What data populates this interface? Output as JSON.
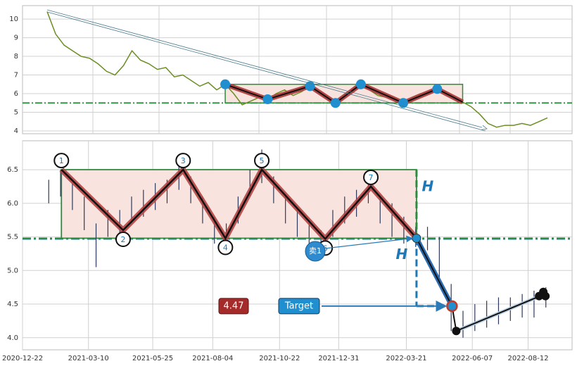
{
  "chart_data": [
    {
      "type": "line",
      "values": [
        10.4,
        9.2,
        8.6,
        8.3,
        8.0,
        7.9,
        7.6,
        7.2,
        7.0,
        7.5,
        8.3,
        7.8,
        7.6,
        7.3,
        7.4,
        6.9,
        7.0,
        6.7,
        6.4,
        6.6,
        6.2,
        6.5,
        6.0,
        5.4,
        5.6,
        5.8,
        5.7,
        6.0,
        6.2,
        5.9,
        6.1,
        6.4,
        6.0,
        5.7,
        5.5,
        5.9,
        6.2,
        6.5,
        6.2,
        5.9,
        5.8,
        5.6,
        5.5,
        5.8,
        6.0,
        6.1,
        6.25,
        5.9,
        5.7,
        5.55,
        5.3,
        4.9,
        4.4,
        4.2,
        4.3,
        4.3,
        4.4,
        4.3,
        4.5,
        4.7
      ],
      "color": "#6b8e23",
      "pattern": [
        null,
        null,
        null,
        null,
        null,
        null,
        null,
        null,
        null,
        null,
        null,
        null,
        null,
        null,
        null,
        null,
        null,
        null,
        null,
        null,
        null,
        6.5,
        null,
        null,
        null,
        null,
        5.7,
        null,
        null,
        null,
        null,
        6.4,
        null,
        null,
        5.5,
        null,
        null,
        6.5,
        null,
        null,
        null,
        null,
        5.5,
        null,
        null,
        null,
        6.25,
        null,
        null,
        5.55,
        null,
        null,
        null,
        null,
        null,
        null,
        null,
        null,
        null,
        null
      ],
      "neckline": 5.5,
      "top": 6.5,
      "ylim": [
        3.85,
        10.72
      ],
      "yticks": [
        4,
        5,
        6,
        7,
        8,
        9,
        10
      ],
      "grid": true
    },
    {
      "type": "ohlc",
      "x": [
        "2021-01-22",
        "2021-02-05",
        "2021-02-19",
        "2021-03-05",
        "2021-03-19",
        "2021-04-02",
        "2021-04-16",
        "2021-04-30",
        "2021-05-14",
        "2021-05-28",
        "2021-06-11",
        "2021-06-25",
        "2021-07-09",
        "2021-07-23",
        "2021-08-06",
        "2021-08-20",
        "2021-09-03",
        "2021-09-17",
        "2021-10-01",
        "2021-10-15",
        "2021-10-29",
        "2021-11-12",
        "2021-11-26",
        "2021-12-10",
        "2021-12-24",
        "2022-01-07",
        "2022-01-21",
        "2022-02-04",
        "2022-02-18",
        "2022-03-04",
        "2022-03-18",
        "2022-04-01",
        "2022-04-15",
        "2022-04-29",
        "2022-05-13",
        "2022-05-27",
        "2022-06-10",
        "2022-06-24",
        "2022-07-08",
        "2022-07-22",
        "2022-08-05",
        "2022-08-19",
        "2022-09-02"
      ],
      "high": [
        6.35,
        6.5,
        6.3,
        6.1,
        5.7,
        5.9,
        5.9,
        6.1,
        6.2,
        6.3,
        6.35,
        6.55,
        6.4,
        6.1,
        5.8,
        5.7,
        6.1,
        6.5,
        6.8,
        6.4,
        6.1,
        5.9,
        5.7,
        5.6,
        5.9,
        6.1,
        6.2,
        6.4,
        6.1,
        6.0,
        5.8,
        5.65,
        5.65,
        5.5,
        4.8,
        4.4,
        4.5,
        4.55,
        4.6,
        4.6,
        4.65,
        4.7,
        4.75
      ],
      "low": [
        6.0,
        6.1,
        5.9,
        5.6,
        5.05,
        5.5,
        5.55,
        5.7,
        5.8,
        5.9,
        6.0,
        6.2,
        6.0,
        5.7,
        5.4,
        5.35,
        5.7,
        6.1,
        6.3,
        6.0,
        5.7,
        5.5,
        5.3,
        5.3,
        5.5,
        5.7,
        5.8,
        6.0,
        5.7,
        5.5,
        5.4,
        5.35,
        5.3,
        4.9,
        4.1,
        4.0,
        4.1,
        4.15,
        4.2,
        4.25,
        4.3,
        4.3,
        4.45
      ],
      "color": "#2d3a5a",
      "xlim": [
        "2020-12-22",
        "2022-10-03"
      ],
      "xticks": [
        "2020-12-22",
        "2021-03-10",
        "2021-05-25",
        "2021-08-04",
        "2021-10-22",
        "2021-12-31",
        "2022-03-21",
        "2022-06-07",
        "2022-08-12"
      ],
      "ylim": [
        3.82,
        6.93
      ],
      "yticks": [
        {
          "value": 4,
          "label": "4.0"
        },
        4.5,
        {
          "value": 5,
          "label": "5.0"
        },
        5.5,
        {
          "value": 6,
          "label": "6.0"
        },
        6.5
      ],
      "grid": true,
      "pattern": {
        "x": [
          "2021-02-06",
          "2021-04-20",
          "2021-06-30",
          "2021-08-19",
          "2021-10-01",
          "2021-12-15",
          "2022-02-07",
          "2022-04-02"
        ],
        "values": [
          6.5,
          5.6,
          6.5,
          5.48,
          6.5,
          5.47,
          6.25,
          5.48
        ],
        "labels": [
          "1",
          "2",
          "3",
          "4",
          "5",
          "6",
          "7",
          null
        ]
      },
      "neckline": 5.48,
      "top": 6.5,
      "breakdown": {
        "x": [
          "2022-04-02",
          "2022-05-14",
          "2022-05-19",
          "2022-08-30"
        ],
        "values": [
          5.48,
          4.47,
          4.1,
          4.64
        ]
      },
      "target": {
        "value": 4.47,
        "label": "Target"
      },
      "sell_label": "卖1",
      "height_label": "H"
    }
  ]
}
